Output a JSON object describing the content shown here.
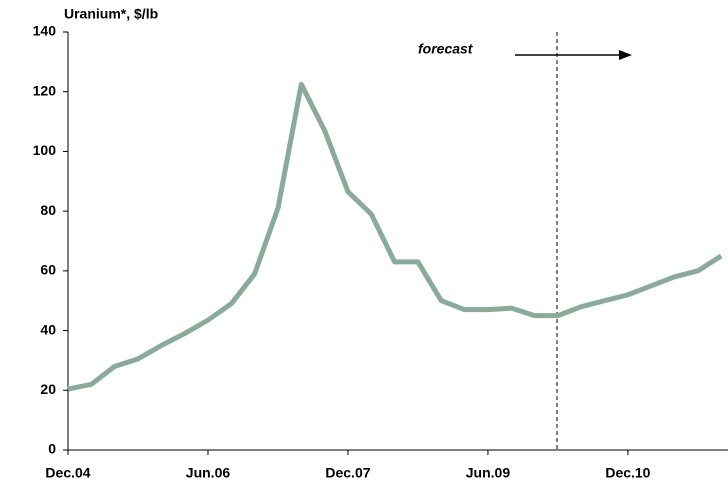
{
  "chart_data": {
    "type": "line",
    "y_label": "Uranium*, $/lb",
    "annotation": "forecast",
    "categories": [
      "Dec.04",
      null,
      null,
      null,
      null,
      null,
      "Jun.06",
      null,
      null,
      null,
      null,
      null,
      "Dec.07",
      null,
      null,
      null,
      null,
      null,
      "Jun.09",
      null,
      null,
      null,
      null,
      null,
      "Dec.10",
      null,
      null,
      null,
      null
    ],
    "series": [
      {
        "name": "Uranium",
        "color": "#8aab9a",
        "values": [
          20.4,
          22,
          28,
          30.5,
          35,
          39,
          43.5,
          49,
          59,
          81,
          122.5,
          107,
          86.5,
          79,
          63,
          63,
          50,
          47,
          47,
          47.5,
          45,
          45,
          48,
          50,
          52,
          55,
          58,
          60,
          65
        ]
      }
    ],
    "ylim": [
      0,
      140
    ],
    "yticks": [
      0,
      20,
      40,
      60,
      80,
      100,
      120,
      140
    ]
  }
}
